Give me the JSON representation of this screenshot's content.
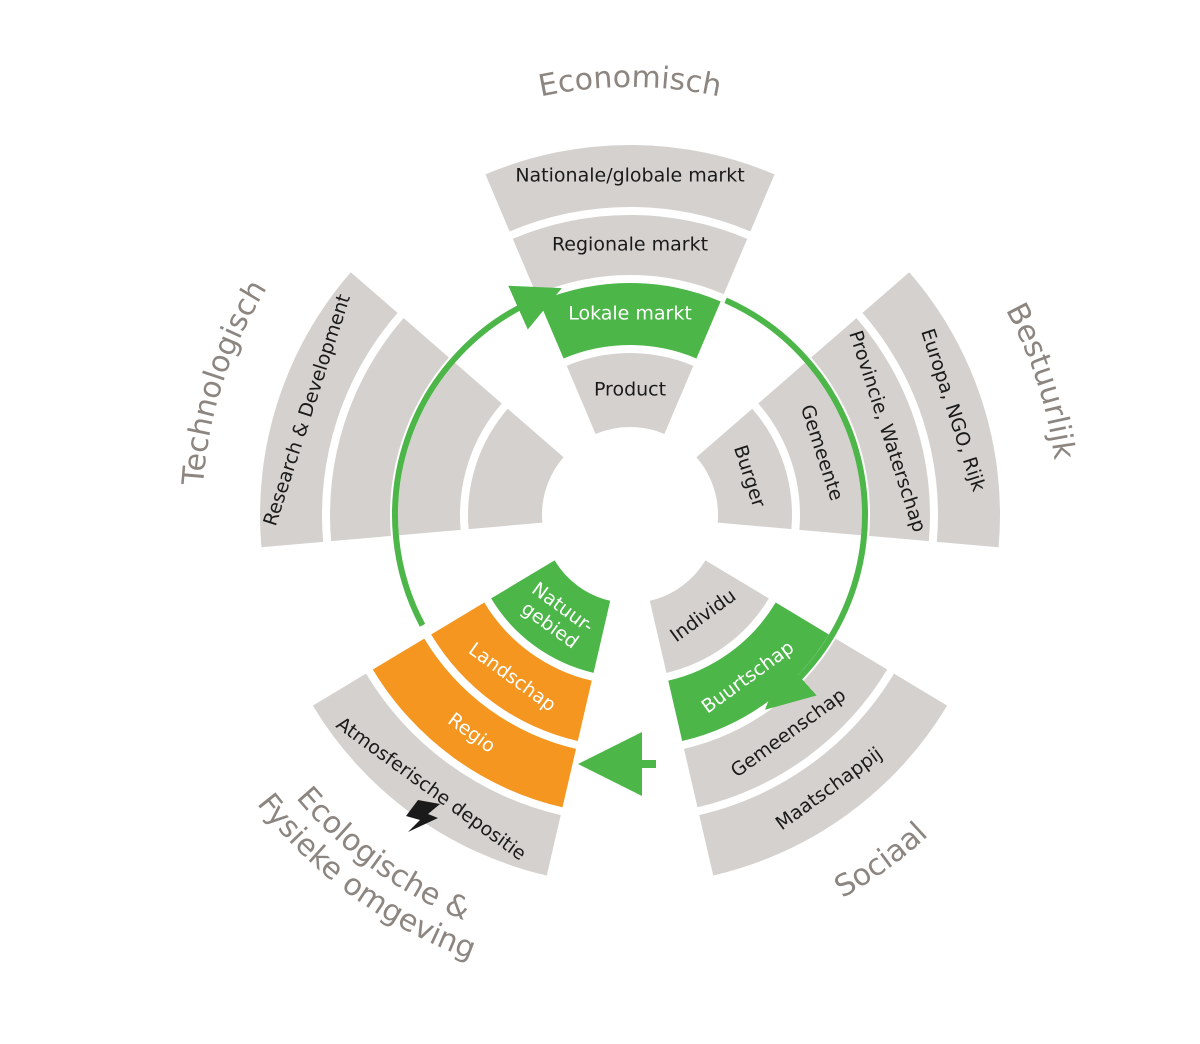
{
  "colors": {
    "gray": "#d5d1ce",
    "green": "#4cb648",
    "orange": "#f4961f",
    "dark_text": "#1a1a1a",
    "light_text": "#ffffff",
    "category_text": "#8c8580"
  },
  "sectors": [
    {
      "category": "Economisch",
      "segments": [
        {
          "label": "Product",
          "highlight": "none"
        },
        {
          "label": "Lokale markt",
          "highlight": "green"
        },
        {
          "label": "Regionale markt",
          "highlight": "none"
        },
        {
          "label": "Nationale/globale markt",
          "highlight": "none"
        }
      ]
    },
    {
      "category": "Bestuurlijk",
      "segments": [
        {
          "label": "Burger",
          "highlight": "none"
        },
        {
          "label": "Gemeente",
          "highlight": "none"
        },
        {
          "label": "Provincie, Waterschap",
          "highlight": "none"
        },
        {
          "label": "Europa, NGO, Rijk",
          "highlight": "none"
        }
      ]
    },
    {
      "category": "Sociaal",
      "segments": [
        {
          "label": "Individu",
          "highlight": "none"
        },
        {
          "label": "Buurtschap",
          "highlight": "green"
        },
        {
          "label": "Gemeenschap",
          "highlight": "none"
        },
        {
          "label": "Maatschappij",
          "highlight": "none"
        }
      ]
    },
    {
      "category": "Ecologische & Fysieke omgeving",
      "category_lines": [
        "Ecologische &",
        "Fysieke omgeving"
      ],
      "segments": [
        {
          "label": "Natuur- gebied",
          "label_lines": [
            "Natuur-",
            "gebied"
          ],
          "highlight": "green"
        },
        {
          "label": "Landschap",
          "highlight": "orange"
        },
        {
          "label": "Regio",
          "highlight": "orange"
        },
        {
          "label": "Atmosferische depositie",
          "highlight": "none"
        }
      ]
    },
    {
      "category": "Technologisch",
      "segments": [
        {
          "label": "",
          "highlight": "none"
        },
        {
          "label": "",
          "highlight": "none"
        },
        {
          "label": "",
          "highlight": "none"
        },
        {
          "label": "Research & Development",
          "highlight": "none"
        }
      ]
    }
  ],
  "icons": {
    "lightning": "lightning-icon",
    "arrow": "arrow-icon"
  }
}
